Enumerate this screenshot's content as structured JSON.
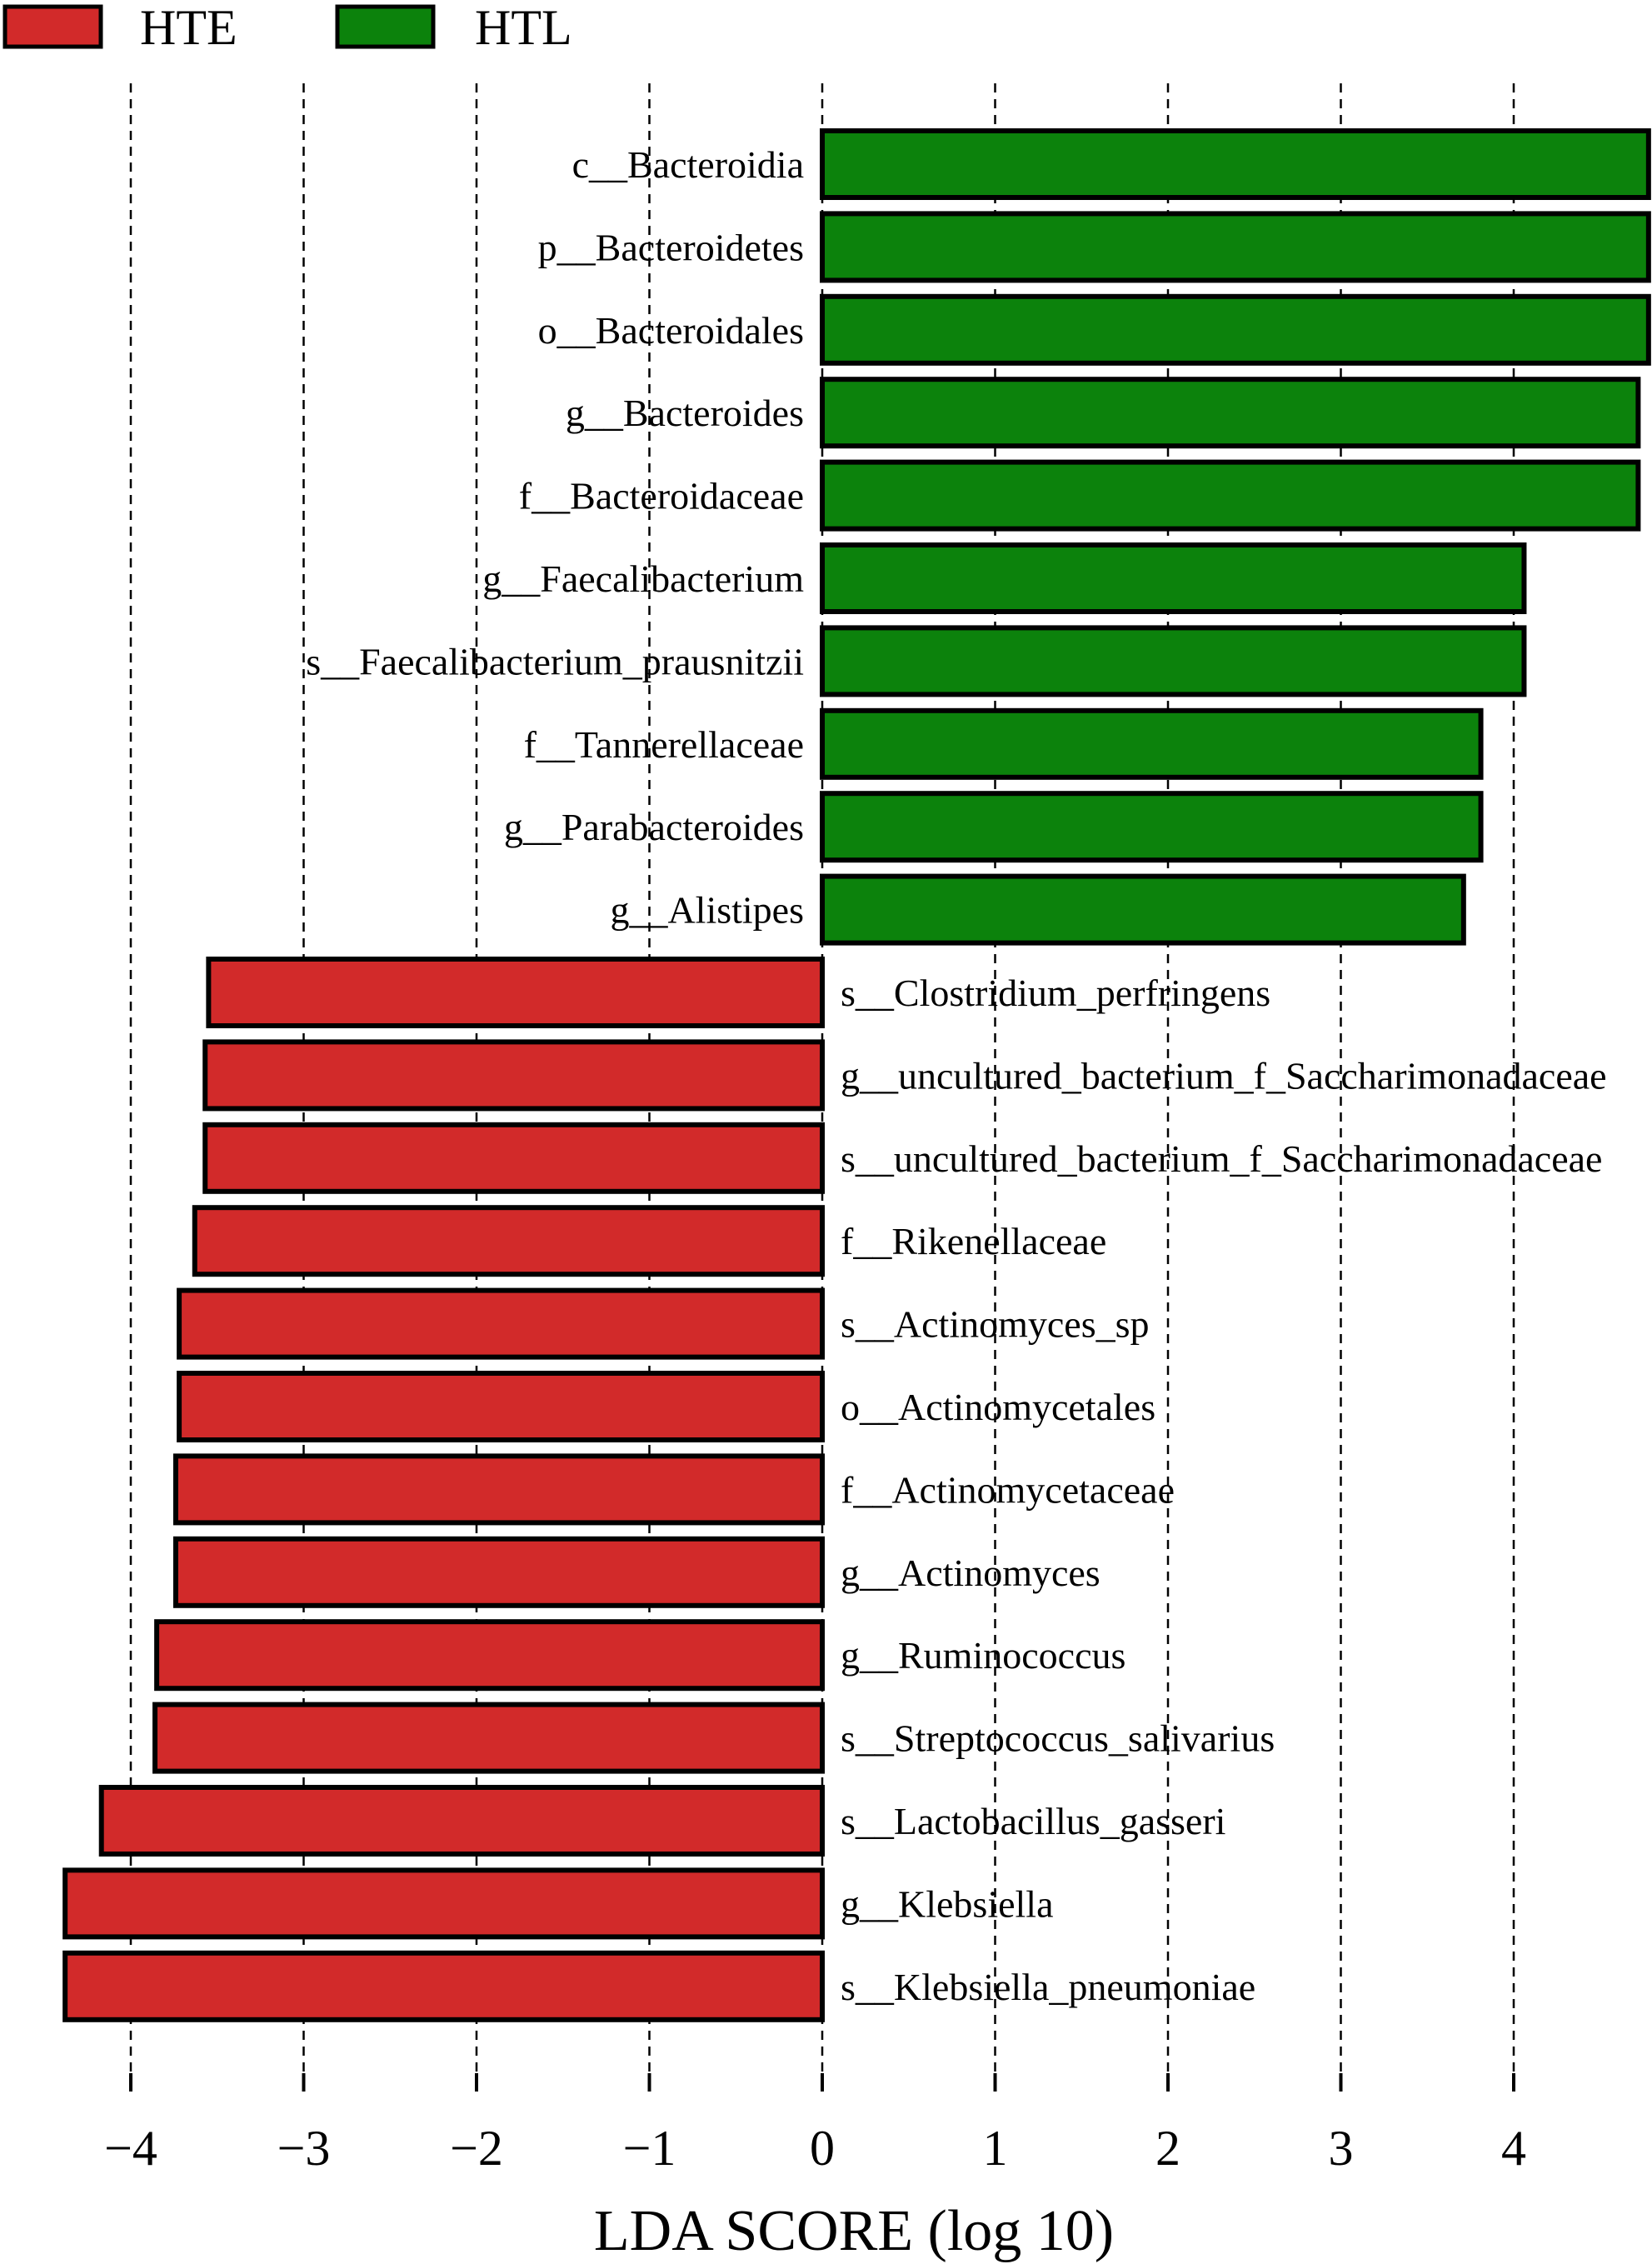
{
  "chart_data": {
    "type": "bar",
    "orientation": "horizontal",
    "legend": {
      "placement": "top-left",
      "items": [
        {
          "name": "HTE",
          "color": "#D22A2A"
        },
        {
          "name": "HTL",
          "color": "#0C820C"
        }
      ]
    },
    "xlabel": "LDA SCORE (log 10)",
    "xlim": [
      -4.4,
      4.78
    ],
    "xticks": [
      -4,
      -3,
      -2,
      -1,
      0,
      1,
      2,
      3,
      4
    ],
    "xtick_labels": [
      "−4",
      "−3",
      "−2",
      "−1",
      "0",
      "1",
      "2",
      "3",
      "4"
    ],
    "grid": "vertical dashed lines at each x tick",
    "bar_edge_color": "#000000",
    "series": [
      {
        "name": "HTL",
        "color": "#0C820C",
        "categories": [
          "c__Bacteroidia",
          "p__Bacteroidetes",
          "o__Bacteroidales",
          "g__Bacteroides",
          "f__Bacteroidaceae",
          "g__Faecalibacterium",
          "s__Faecalibacterium_prausnitzii",
          "f__Tannerellaceae",
          "g__Parabacteroides",
          "g__Alistipes"
        ],
        "values": [
          4.78,
          4.78,
          4.78,
          4.72,
          4.72,
          4.06,
          4.06,
          3.81,
          3.81,
          3.71
        ]
      },
      {
        "name": "HTE",
        "color": "#D22A2A",
        "categories": [
          "s__Clostridium_perfringens",
          "g__uncultured_bacterium_f_Saccharimonadaceae",
          "s__uncultured_bacterium_f_Saccharimonadaceae",
          "f__Rikenellaceae",
          "s__Actinomyces_sp",
          "o__Actinomycetales",
          "f__Actinomycetaceae",
          "g__Actinomyces",
          "g__Ruminococcus",
          "s__Streptococcus_salivarius",
          "s__Lactobacillus_gasseri",
          "g__Klebsiella",
          "s__Klebsiella_pneumoniae"
        ],
        "values": [
          -3.55,
          -3.57,
          -3.57,
          -3.63,
          -3.72,
          -3.72,
          -3.74,
          -3.74,
          -3.85,
          -3.86,
          -4.17,
          -4.38,
          -4.38
        ]
      }
    ]
  }
}
